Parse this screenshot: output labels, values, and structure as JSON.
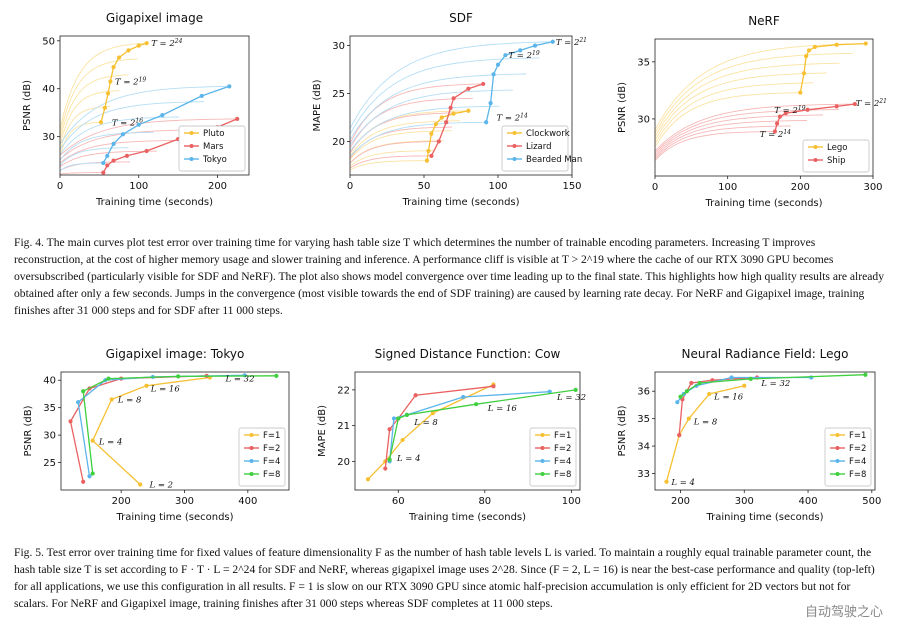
{
  "figure4": {
    "caption": "Fig. 4.  The main curves plot test error over training time for varying hash table size T which determines the number of trainable encoding parameters. Increasing T improves reconstruction, at the cost of higher memory usage and slower training and inference. A performance cliff is visible at T > 2^19 where the cache of our RTX 3090 GPU becomes oversubscribed (particularly visible for SDF and NeRF). The plot also shows model convergence over time leading up to the final state. This highlights how high quality results are already obtained after only a few seconds. Jumps in the convergence (most visible towards the end of SDF training) are caused by learning rate decay. For NeRF and Gigapixel image, training finishes after 31 000 steps and for SDF after 11 000 steps."
  },
  "figure5": {
    "caption": "Fig. 5.  Test error over training time for fixed values of feature dimensionality F as the number of hash table levels L is varied. To maintain a roughly equal trainable parameter count, the hash table size T is set according to F · T · L = 2^24 for SDF and NeRF, whereas gigapixel image uses 2^28. Since (F = 2, L = 16) is near the best-case performance and quality (top-left) for all applications, we use this configuration in all results. F = 1 is slow on our RTX 3090 GPU since atomic half-precision accumulation is only efficient for 2D vectors but not for scalars. For NeRF and Gigapixel image, training finishes after 31 000 steps whereas SDF completes at 11 000 steps."
  },
  "watermark": "自动驾驶之心",
  "chart_data": [
    {
      "type": "line",
      "title": "Gigapixel image",
      "xlabel": "Training time (seconds)",
      "ylabel": "PSNR (dB)",
      "xlim": [
        0,
        240
      ],
      "ylim": [
        22,
        51
      ],
      "xticks": [
        0,
        100,
        200
      ],
      "yticks": [
        30,
        40,
        50
      ],
      "legend_position": "bottom-right",
      "series": [
        {
          "name": "Pluto",
          "color": "#f6c032",
          "values": [
            [
              52,
              33
            ],
            [
              57,
              36
            ],
            [
              61,
              39
            ],
            [
              64,
              41.5
            ],
            [
              68,
              44.5
            ],
            [
              75,
              46.5
            ],
            [
              87,
              48
            ],
            [
              100,
              49
            ],
            [
              110,
              49.5
            ]
          ]
        },
        {
          "name": "Mars",
          "color": "#ea6161",
          "values": [
            [
              55,
              22.5
            ],
            [
              60,
              24
            ],
            [
              68,
              25
            ],
            [
              85,
              26
            ],
            [
              110,
              27
            ],
            [
              150,
              29.5
            ],
            [
              200,
              32
            ],
            [
              225,
              33.7
            ]
          ]
        },
        {
          "name": "Tokyo",
          "color": "#5bb5ea",
          "values": [
            [
              55,
              24.5
            ],
            [
              60,
              26
            ],
            [
              68,
              28.5
            ],
            [
              80,
              30.5
            ],
            [
              100,
              32.5
            ],
            [
              130,
              34.5
            ],
            [
              180,
              38.5
            ],
            [
              215,
              40.5
            ]
          ]
        }
      ],
      "annotations": [
        {
          "text": "T = 2^24",
          "x": 112,
          "y": 49.5
        },
        {
          "text": "T = 2^19",
          "x": 66,
          "y": 41.5
        },
        {
          "text": "T = 2^16",
          "x": 62,
          "y": 33
        }
      ]
    },
    {
      "type": "line",
      "title": "SDF",
      "xlabel": "Training time (seconds)",
      "ylabel": "MAPE (dB)",
      "xlim": [
        0,
        150
      ],
      "ylim": [
        16.5,
        31
      ],
      "xticks": [
        0,
        50,
        100,
        150
      ],
      "yticks": [
        20,
        25,
        30
      ],
      "legend_position": "bottom-right",
      "series": [
        {
          "name": "Clockwork",
          "color": "#f6c032",
          "values": [
            [
              52,
              18
            ],
            [
              53,
              19
            ],
            [
              55,
              20.8
            ],
            [
              58,
              21.8
            ],
            [
              62,
              22.5
            ],
            [
              70,
              22.9
            ],
            [
              80,
              23.2
            ]
          ]
        },
        {
          "name": "Lizard",
          "color": "#ea6161",
          "values": [
            [
              55,
              18.5
            ],
            [
              60,
              20
            ],
            [
              65,
              22
            ],
            [
              68,
              23.5
            ],
            [
              70,
              24.5
            ],
            [
              80,
              25.5
            ],
            [
              90,
              26
            ]
          ]
        },
        {
          "name": "Bearded Man",
          "color": "#5bb5ea",
          "values": [
            [
              92,
              22
            ],
            [
              95,
              24
            ],
            [
              97,
              27
            ],
            [
              100,
              28
            ],
            [
              105,
              29
            ],
            [
              115,
              29.5
            ],
            [
              125,
              30
            ],
            [
              137,
              30.4
            ]
          ]
        }
      ],
      "annotations": [
        {
          "text": "T = 2^21",
          "x": 137,
          "y": 30.4
        },
        {
          "text": "T = 2^19",
          "x": 105,
          "y": 29
        },
        {
          "text": "T = 2^14",
          "x": 97,
          "y": 22.5
        }
      ]
    },
    {
      "type": "line",
      "title": "NeRF",
      "xlabel": "Training time (seconds)",
      "ylabel": "PSNR (dB)",
      "xlim": [
        0,
        300
      ],
      "ylim": [
        25,
        37
      ],
      "xticks": [
        0,
        100,
        200,
        300
      ],
      "yticks": [
        30,
        35
      ],
      "legend_position": "bottom-right",
      "series": [
        {
          "name": "Lego",
          "color": "#f6c032",
          "values": [
            [
              200,
              32.3
            ],
            [
              205,
              34
            ],
            [
              208,
              35.5
            ],
            [
              212,
              36
            ],
            [
              220,
              36.3
            ],
            [
              250,
              36.5
            ],
            [
              290,
              36.6
            ]
          ]
        },
        {
          "name": "Ship",
          "color": "#ea6161",
          "values": [
            [
              165,
              28.9
            ],
            [
              168,
              29.6
            ],
            [
              172,
              30.2
            ],
            [
              180,
              30.5
            ],
            [
              210,
              30.8
            ],
            [
              250,
              31.1
            ],
            [
              275,
              31.3
            ]
          ]
        }
      ],
      "annotations": [
        {
          "text": "T = 2^21",
          "x": 272,
          "y": 31.4
        },
        {
          "text": "T = 2^19",
          "x": 160,
          "y": 30.8
        },
        {
          "text": "T = 2^14",
          "x": 140,
          "y": 28.7
        }
      ]
    },
    {
      "type": "line",
      "title": "Gigapixel image: Tokyo",
      "xlabel": "Training time (seconds)",
      "ylabel": "PSNR (dB)",
      "xlim": [
        105,
        465
      ],
      "ylim": [
        20,
        41.5
      ],
      "xticks": [
        200,
        300,
        400
      ],
      "yticks": [
        25,
        30,
        35,
        40
      ],
      "legend_position": "bottom-right",
      "series": [
        {
          "name": "F=1",
          "color": "#f6c032",
          "values": [
            [
              230,
              21
            ],
            [
              155,
              29
            ],
            [
              185,
              36.5
            ],
            [
              240,
              39
            ],
            [
              340,
              40.5
            ]
          ]
        },
        {
          "name": "F=2",
          "color": "#ea6161",
          "values": [
            [
              140,
              21.5
            ],
            [
              120,
              32.5
            ],
            [
              150,
              38.5
            ],
            [
              200,
              40.3
            ],
            [
              335,
              40.8
            ]
          ]
        },
        {
          "name": "F=4",
          "color": "#5bb5ea",
          "values": [
            [
              150,
              22.5
            ],
            [
              132,
              36
            ],
            [
              175,
              40
            ],
            [
              250,
              40.6
            ],
            [
              395,
              40.9
            ]
          ]
        },
        {
          "name": "F=8",
          "color": "#3fcf3f",
          "values": [
            [
              155,
              23
            ],
            [
              140,
              38
            ],
            [
              180,
              40.3
            ],
            [
              290,
              40.7
            ],
            [
              445,
              40.8
            ]
          ]
        }
      ],
      "annotations": [
        {
          "text": "L = 32",
          "x": 360,
          "y": 40.3
        },
        {
          "text": "L = 16",
          "x": 242,
          "y": 38.5
        },
        {
          "text": "L = 8",
          "x": 190,
          "y": 36.5
        },
        {
          "text": "L = 4",
          "x": 160,
          "y": 28.8
        },
        {
          "text": "L = 2",
          "x": 240,
          "y": 21
        }
      ]
    },
    {
      "type": "line",
      "title": "Signed Distance Function: Cow",
      "xlabel": "Training time (seconds)",
      "ylabel": "MAPE (dB)",
      "xlim": [
        50,
        102
      ],
      "ylim": [
        19.2,
        22.5
      ],
      "xticks": [
        60,
        80,
        100
      ],
      "yticks": [
        20,
        21,
        22
      ],
      "legend_position": "bottom-right",
      "series": [
        {
          "name": "F=1",
          "color": "#f6c032",
          "values": [
            [
              53,
              19.5
            ],
            [
              57,
              20
            ],
            [
              61,
              20.6
            ],
            [
              68,
              21.35
            ],
            [
              82,
              22.15
            ]
          ]
        },
        {
          "name": "F=2",
          "color": "#ea6161",
          "values": [
            [
              57,
              19.8
            ],
            [
              58,
              20.9
            ],
            [
              60,
              21.2
            ],
            [
              64,
              21.85
            ],
            [
              82,
              22.1
            ]
          ]
        },
        {
          "name": "F=4",
          "color": "#5bb5ea",
          "values": [
            [
              58,
              20
            ],
            [
              59,
              21.2
            ],
            [
              62,
              21.3
            ],
            [
              75,
              21.8
            ],
            [
              95,
              21.95
            ]
          ]
        },
        {
          "name": "F=8",
          "color": "#3fcf3f",
          "values": [
            [
              58,
              20.05
            ],
            [
              60,
              21.2
            ],
            [
              62,
              21.3
            ],
            [
              78,
              21.6
            ],
            [
              101,
              22
            ]
          ]
        }
      ],
      "annotations": [
        {
          "text": "L = 32",
          "x": 96,
          "y": 21.8
        },
        {
          "text": "L = 16",
          "x": 80,
          "y": 21.5
        },
        {
          "text": "L = 8",
          "x": 63,
          "y": 21.1
        },
        {
          "text": "L = 4",
          "x": 59,
          "y": 20.1
        }
      ]
    },
    {
      "type": "line",
      "title": "Neural Radiance Field: Lego",
      "xlabel": "Training time (seconds)",
      "ylabel": "PSNR (dB)",
      "xlim": [
        160,
        505
      ],
      "ylim": [
        32.4,
        36.7
      ],
      "xticks": [
        200,
        300,
        400,
        500
      ],
      "yticks": [
        33,
        34,
        35,
        36
      ],
      "legend_position": "bottom-right",
      "series": [
        {
          "name": "F=1",
          "color": "#f6c032",
          "values": [
            [
              178,
              32.7
            ],
            [
              198,
              34.4
            ],
            [
              213,
              35.0
            ],
            [
              245,
              35.9
            ],
            [
              300,
              36.2
            ]
          ]
        },
        {
          "name": "F=2",
          "color": "#ea6161",
          "values": [
            [
              198,
              34.4
            ],
            [
              203,
              35.7
            ],
            [
              217,
              36.3
            ],
            [
              250,
              36.4
            ],
            [
              320,
              36.5
            ]
          ]
        },
        {
          "name": "F=4",
          "color": "#5bb5ea",
          "values": [
            [
              195,
              35.6
            ],
            [
              205,
              35.9
            ],
            [
              225,
              36.2
            ],
            [
              280,
              36.5
            ],
            [
              405,
              36.5
            ]
          ]
        },
        {
          "name": "F=8",
          "color": "#3fcf3f",
          "values": [
            [
              200,
              35.8
            ],
            [
              210,
              36.0
            ],
            [
              230,
              36.3
            ],
            [
              310,
              36.45
            ],
            [
              490,
              36.6
            ]
          ]
        }
      ],
      "annotations": [
        {
          "text": "L = 32",
          "x": 322,
          "y": 36.3
        },
        {
          "text": "L = 16",
          "x": 248,
          "y": 35.8
        },
        {
          "text": "L = 8",
          "x": 216,
          "y": 34.9
        },
        {
          "text": "L = 4",
          "x": 181,
          "y": 32.7
        }
      ]
    }
  ]
}
